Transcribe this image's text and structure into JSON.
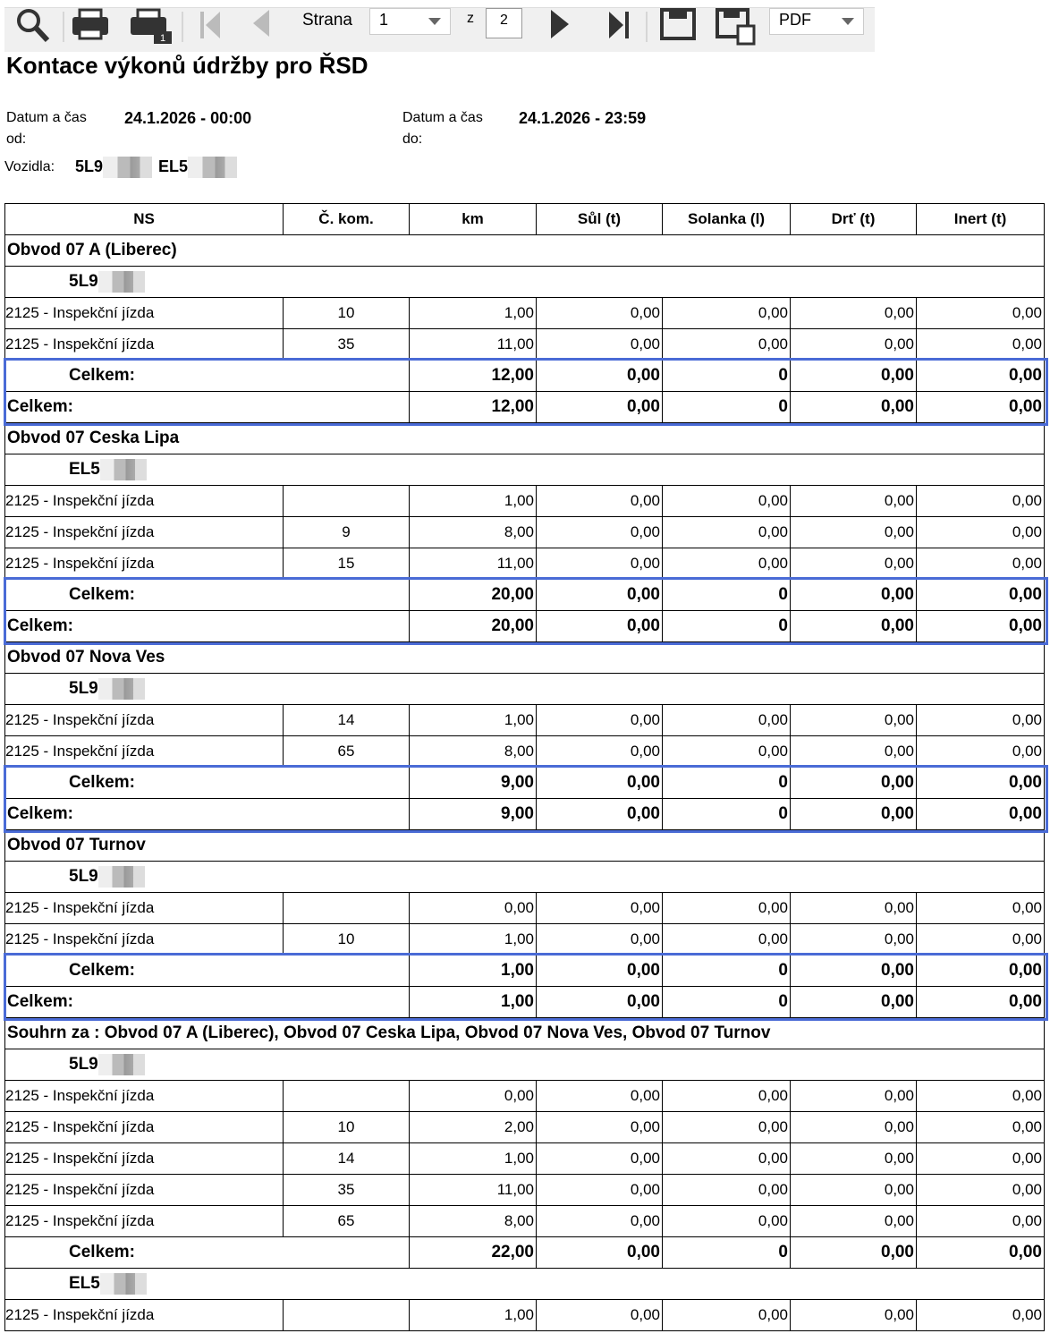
{
  "toolbar": {
    "page_label": "Strana",
    "page": "1",
    "of": "z",
    "total": "2",
    "format": "PDF"
  },
  "header": {
    "title": "Kontace výkonů údržby pro ŘSD",
    "from_label": "Datum a čas od:",
    "from": "24.1.2026 - 00:00",
    "to_label": "Datum a čas do:",
    "to": "24.1.2026 - 23:59",
    "vehicles_label": "Vozidla:",
    "vehicles": [
      "5L9",
      "EL5"
    ]
  },
  "table": {
    "columns": [
      "NS",
      "Č. kom.",
      "km",
      "Sůl (t)",
      "Solanka (l)",
      "Drť (t)",
      "Inert (t)"
    ],
    "groups": [
      {
        "name": "Obvod 07 A (Liberec)",
        "vehicles": [
          {
            "name": "5L9",
            "rows": [
              {
                "ns": "2125 - Inspekční jízda",
                "kom": "10",
                "km": "1,00",
                "sul": "0,00",
                "solanka": "0,00",
                "drt": "0,00",
                "inert": "0,00"
              },
              {
                "ns": "2125 - Inspekční jízda",
                "kom": "35",
                "km": "11,00",
                "sul": "0,00",
                "solanka": "0,00",
                "drt": "0,00",
                "inert": "0,00"
              }
            ],
            "total": {
              "label": "Celkem:",
              "km": "12,00",
              "sul": "0,00",
              "solanka": "0",
              "drt": "0,00",
              "inert": "0,00"
            }
          }
        ],
        "total": {
          "label": "Celkem:",
          "km": "12,00",
          "sul": "0,00",
          "solanka": "0",
          "drt": "0,00",
          "inert": "0,00"
        }
      },
      {
        "name": "Obvod 07 Ceska Lipa",
        "vehicles": [
          {
            "name": "EL5",
            "rows": [
              {
                "ns": "2125 - Inspekční jízda",
                "km": "1,00",
                "sul": "0,00",
                "solanka": "0,00",
                "drt": "0,00",
                "inert": "0,00"
              },
              {
                "ns": "2125 - Inspekční jízda",
                "kom": "9",
                "km": "8,00",
                "sul": "0,00",
                "solanka": "0,00",
                "drt": "0,00",
                "inert": "0,00"
              },
              {
                "ns": "2125 - Inspekční jízda",
                "kom": "15",
                "km": "11,00",
                "sul": "0,00",
                "solanka": "0,00",
                "drt": "0,00",
                "inert": "0,00"
              }
            ],
            "total": {
              "label": "Celkem:",
              "km": "20,00",
              "sul": "0,00",
              "solanka": "0",
              "drt": "0,00",
              "inert": "0,00"
            }
          }
        ],
        "total": {
          "label": "Celkem:",
          "km": "20,00",
          "sul": "0,00",
          "solanka": "0",
          "drt": "0,00",
          "inert": "0,00"
        }
      },
      {
        "name": "Obvod 07 Nova Ves",
        "vehicles": [
          {
            "name": "5L9",
            "rows": [
              {
                "ns": "2125 - Inspekční jízda",
                "kom": "14",
                "km": "1,00",
                "sul": "0,00",
                "solanka": "0,00",
                "drt": "0,00",
                "inert": "0,00"
              },
              {
                "ns": "2125 - Inspekční jízda",
                "kom": "65",
                "km": "8,00",
                "sul": "0,00",
                "solanka": "0,00",
                "drt": "0,00",
                "inert": "0,00"
              }
            ],
            "total": {
              "label": "Celkem:",
              "km": "9,00",
              "sul": "0,00",
              "solanka": "0",
              "drt": "0,00",
              "inert": "0,00"
            }
          }
        ],
        "total": {
          "label": "Celkem:",
          "km": "9,00",
          "sul": "0,00",
          "solanka": "0",
          "drt": "0,00",
          "inert": "0,00"
        }
      },
      {
        "name": "Obvod 07 Turnov",
        "vehicles": [
          {
            "name": "5L9",
            "rows": [
              {
                "ns": "2125 - Inspekční jízda",
                "km": "0,00",
                "sul": "0,00",
                "solanka": "0,00",
                "drt": "0,00",
                "inert": "0,00"
              },
              {
                "ns": "2125 - Inspekční jízda",
                "kom": "10",
                "km": "1,00",
                "sul": "0,00",
                "solanka": "0,00",
                "drt": "0,00",
                "inert": "0,00"
              }
            ],
            "total": {
              "label": "Celkem:",
              "km": "1,00",
              "sul": "0,00",
              "solanka": "0",
              "drt": "0,00",
              "inert": "0,00"
            }
          }
        ],
        "total": {
          "label": "Celkem:",
          "km": "1,00",
          "sul": "0,00",
          "solanka": "0",
          "drt": "0,00",
          "inert": "0,00"
        }
      }
    ],
    "summary": {
      "name": "Souhrn za : Obvod 07 A (Liberec), Obvod 07 Ceska Lipa, Obvod 07 Nova Ves, Obvod 07 Turnov",
      "vehicles": [
        {
          "name": "5L9",
          "rows": [
            {
              "ns": "2125 - Inspekční jízda",
              "km": "0,00",
              "sul": "0,00",
              "solanka": "0,00",
              "drt": "0,00",
              "inert": "0,00"
            },
            {
              "ns": "2125 - Inspekční jízda",
              "kom": "10",
              "km": "2,00",
              "sul": "0,00",
              "solanka": "0,00",
              "drt": "0,00",
              "inert": "0,00"
            },
            {
              "ns": "2125 - Inspekční jízda",
              "kom": "14",
              "km": "1,00",
              "sul": "0,00",
              "solanka": "0,00",
              "drt": "0,00",
              "inert": "0,00"
            },
            {
              "ns": "2125 - Inspekční jízda",
              "kom": "35",
              "km": "11,00",
              "sul": "0,00",
              "solanka": "0,00",
              "drt": "0,00",
              "inert": "0,00"
            },
            {
              "ns": "2125 - Inspekční jízda",
              "kom": "65",
              "km": "8,00",
              "sul": "0,00",
              "solanka": "0,00",
              "drt": "0,00",
              "inert": "0,00"
            }
          ],
          "total": {
            "label": "Celkem:",
            "km": "22,00",
            "sul": "0,00",
            "solanka": "0",
            "drt": "0,00",
            "inert": "0,00"
          }
        },
        {
          "name": "EL5",
          "rows": [
            {
              "ns": "2125 - Inspekční jízda",
              "km": "1,00",
              "sul": "0,00",
              "solanka": "0,00",
              "drt": "0,00",
              "inert": "0,00"
            }
          ]
        }
      ]
    }
  }
}
